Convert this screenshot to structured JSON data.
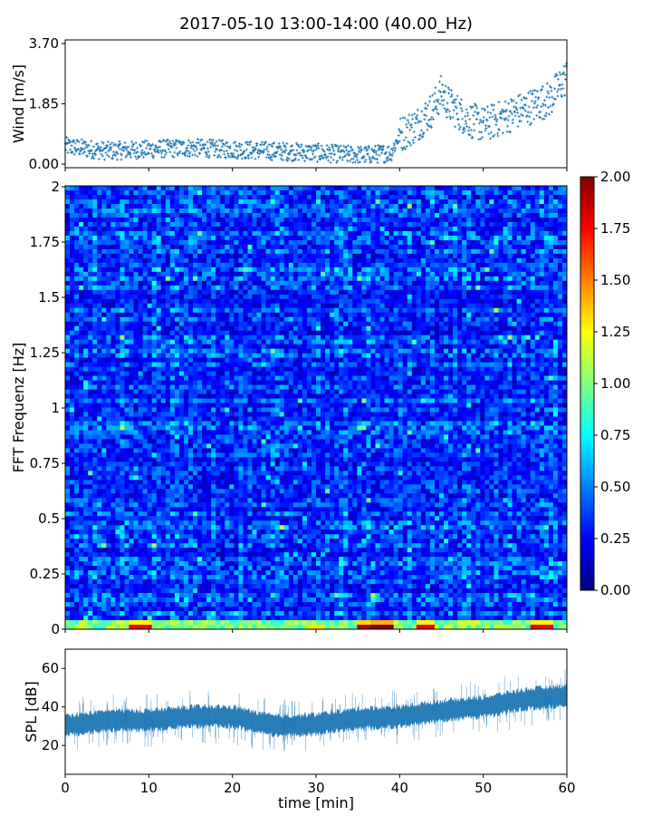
{
  "title": "2017-05-10 13:00-14:00 (40.00_Hz)",
  "chart_data": [
    {
      "name": "wind",
      "type": "scatter",
      "ylabel": "Wind [m/s]",
      "ylim": [
        0,
        3.7
      ],
      "xlim": [
        0,
        60
      ],
      "y_ticks": [
        "0.00",
        "1.85",
        "3.70"
      ],
      "marker_color": "#1f77b4",
      "trend": {
        "x": [
          0,
          5,
          10,
          15,
          20,
          25,
          30,
          33,
          36,
          39,
          40,
          42,
          44,
          45,
          46,
          48,
          50,
          52,
          54,
          56,
          58,
          60
        ],
        "y": [
          0.55,
          0.4,
          0.45,
          0.5,
          0.45,
          0.4,
          0.35,
          0.3,
          0.28,
          0.35,
          0.9,
          1.2,
          1.7,
          2.2,
          1.8,
          1.4,
          1.2,
          1.4,
          1.6,
          1.8,
          2.0,
          2.7
        ]
      }
    },
    {
      "name": "spectrogram",
      "type": "heatmap",
      "ylabel": "FFT Frequenz [Hz]",
      "ylim": [
        0,
        2
      ],
      "xlim": [
        0,
        60
      ],
      "y_ticks": [
        "0",
        "0.25",
        "0.5",
        "0.75",
        "1",
        "1.25",
        "1.5",
        "1.75",
        "2"
      ],
      "colormap": "jet",
      "colorbar": {
        "min": 0,
        "max": 2,
        "ticks": [
          "0.00",
          "0.25",
          "0.50",
          "0.75",
          "1.00",
          "1.25",
          "1.50",
          "1.75",
          "2.00"
        ]
      },
      "typical_value": 0.35,
      "low_frequency_peaks": [
        {
          "minute": 9,
          "value": 1.8
        },
        {
          "minute": 30,
          "value": 1.3
        },
        {
          "minute": 36,
          "value": 1.9
        },
        {
          "minute": 38,
          "value": 2.0
        },
        {
          "minute": 43,
          "value": 1.8
        },
        {
          "minute": 57,
          "value": 1.8
        }
      ]
    },
    {
      "name": "spl",
      "type": "line",
      "ylabel": "SPL [dB]",
      "xlabel": "time [min]",
      "ylim": [
        5,
        70
      ],
      "xlim": [
        0,
        60
      ],
      "y_ticks": [
        "20",
        "40",
        "60"
      ],
      "x_ticks": [
        "0",
        "10",
        "20",
        "30",
        "40",
        "50",
        "60"
      ],
      "line_color": "#1f77b4",
      "trend": {
        "x": [
          0,
          5,
          10,
          15,
          20,
          25,
          30,
          35,
          40,
          45,
          50,
          55,
          60
        ],
        "y": [
          30,
          33,
          33,
          35,
          35,
          30,
          31,
          34,
          35,
          38,
          40,
          44,
          46
        ]
      },
      "spread": 6
    }
  ]
}
